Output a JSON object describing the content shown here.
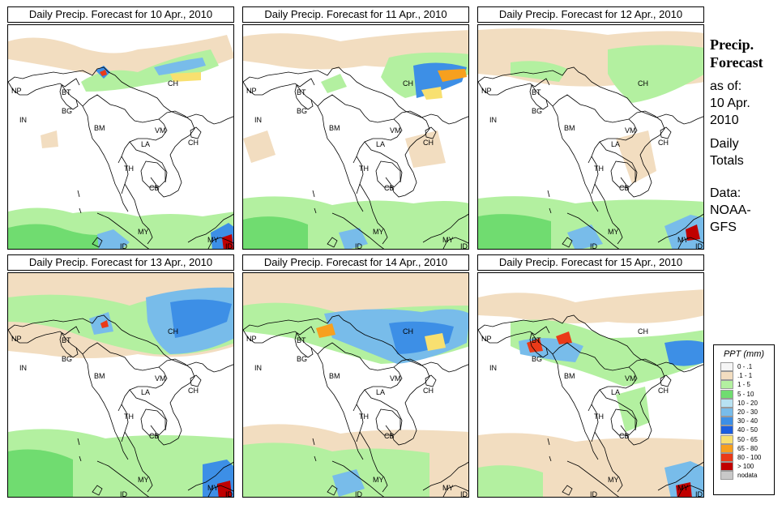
{
  "panels": [
    {
      "title": "Daily Precip. Forecast for  10 Apr., 2010"
    },
    {
      "title": "Daily Precip. Forecast for  11 Apr., 2010"
    },
    {
      "title": "Daily Precip. Forecast for  12 Apr., 2010"
    },
    {
      "title": "Daily Precip. Forecast for  13 Apr., 2010"
    },
    {
      "title": "Daily Precip. Forecast for  14 Apr., 2010"
    },
    {
      "title": "Daily Precip. Forecast for  15 Apr., 2010"
    }
  ],
  "country_labels": [
    "NP",
    "BT",
    "BG",
    "IN",
    "BM",
    "CH",
    "VM",
    "LA",
    "TH",
    "CB",
    "MY",
    "ID",
    "CH"
  ],
  "sidebar": {
    "title_line1": "Precip.",
    "title_line2": "Forecast",
    "asof": "as of:",
    "date_line1": "10 Apr.",
    "date_line2": "2010",
    "totals_line1": "Daily",
    "totals_line2": "Totals",
    "data_line1": "Data:",
    "data_line2": "NOAA-",
    "data_line3": "GFS"
  },
  "legend": {
    "title": "PPT (mm)",
    "items": [
      {
        "label": "0 - .1",
        "color": "#f5f5f5"
      },
      {
        "label": ".1 - 1",
        "color": "#f2ddc0"
      },
      {
        "label": "1 - 5",
        "color": "#b3f0a0"
      },
      {
        "label": "5 - 10",
        "color": "#70dc70"
      },
      {
        "label": "10 - 20",
        "color": "#b8e2f2"
      },
      {
        "label": "20 - 30",
        "color": "#78bcea"
      },
      {
        "label": "30 - 40",
        "color": "#3d8fe6"
      },
      {
        "label": "40 - 50",
        "color": "#1c5ee0"
      },
      {
        "label": "50 - 65",
        "color": "#f8e070"
      },
      {
        "label": "65 - 80",
        "color": "#f7a01e"
      },
      {
        "label": "80 - 100",
        "color": "#ea3a18"
      },
      {
        "label": "> 100",
        "color": "#c00000"
      },
      {
        "label": "nodata",
        "color": "#c8c8c8"
      }
    ]
  }
}
